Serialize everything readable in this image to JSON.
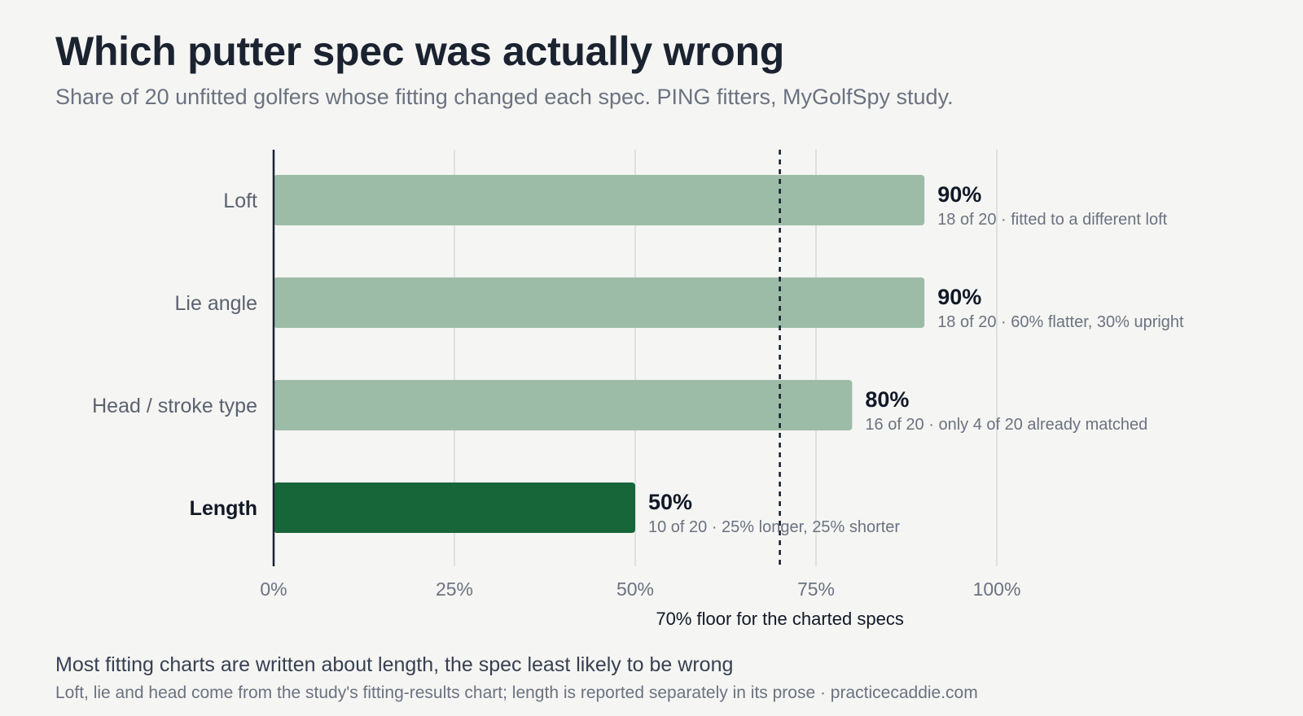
{
  "header": {
    "title": "Which putter spec was actually wrong",
    "subtitle": "Share of 20 unfitted golfers whose fitting changed each spec. PING fitters, MyGolfSpy study."
  },
  "footer": {
    "main": "Most fitting charts are written about length, the spec least likely to be wrong",
    "note": "Loft, lie and head come from the study's fitting-results chart; length is reported separately in its prose · practicecaddie.com"
  },
  "chart_data": {
    "type": "bar",
    "orientation": "horizontal",
    "categories": [
      "Loft",
      "Lie angle",
      "Head / stroke type",
      "Length"
    ],
    "values": [
      90,
      90,
      80,
      50
    ],
    "value_labels": [
      "90%",
      "90%",
      "80%",
      "50%"
    ],
    "notes": [
      "18 of 20 · fitted to a different loft",
      "18 of 20 · 60% flatter, 30% upright",
      "16 of 20 · only 4 of 20 already matched",
      "10 of 20 · 25% longer, 25% shorter"
    ],
    "highlight": "Length",
    "xlim": [
      0,
      100
    ],
    "xticks": [
      0,
      25,
      50,
      75,
      100
    ],
    "xtick_labels": [
      "0%",
      "25%",
      "50%",
      "75%",
      "100%"
    ],
    "grid": true,
    "reference_line": {
      "value": 70,
      "label": "70% floor for the charted specs"
    },
    "colors": {
      "bar": "#9dbca8",
      "highlight": "#17663a",
      "axis": "#1b2230",
      "grid": "#d9d9d9"
    }
  }
}
